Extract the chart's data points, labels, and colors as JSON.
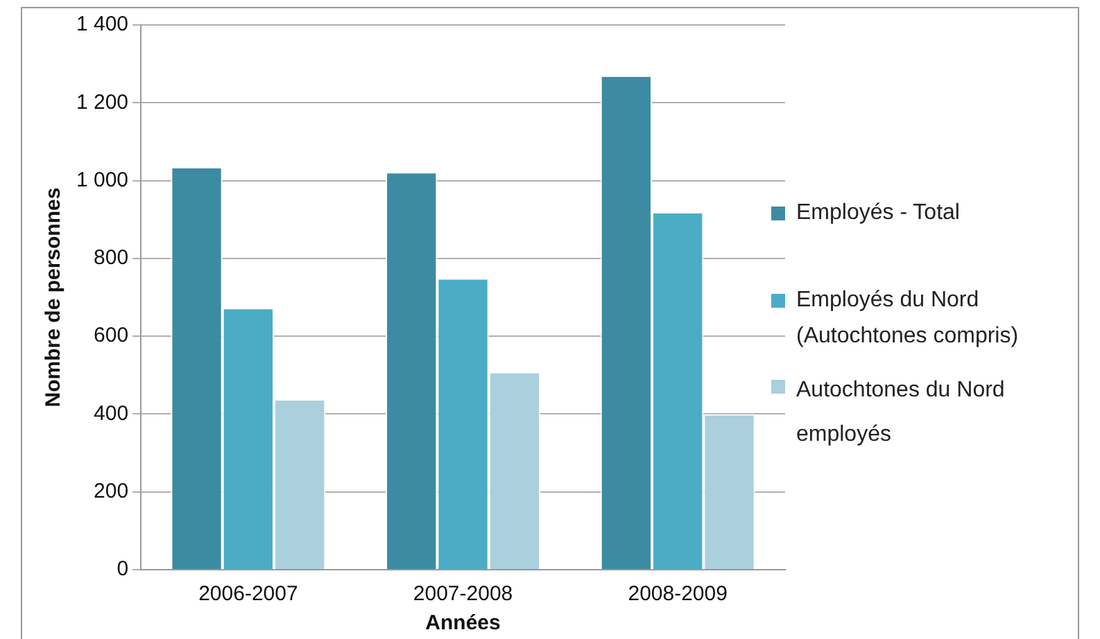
{
  "chart_data": {
    "type": "bar",
    "xlabel": "Années",
    "ylabel": "Nombre de personnes",
    "categories": [
      "2006-2007",
      "2007-2008",
      "2008-2009"
    ],
    "series": [
      {
        "name": "Employés - Total",
        "color": "#3d8ba3",
        "values": [
          1035,
          1022,
          1270
        ]
      },
      {
        "name": "Employés du Nord (Autochtones compris)",
        "color": "#4bacc6",
        "values": [
          673,
          749,
          919
        ]
      },
      {
        "name": "Autochtones du Nord employés",
        "color": "#aacfdd",
        "values": [
          438,
          508,
          400
        ]
      }
    ],
    "ylim": [
      0,
      1400
    ],
    "yticks": [
      {
        "value": 0,
        "label": "0"
      },
      {
        "value": 200,
        "label": "200"
      },
      {
        "value": 400,
        "label": "400"
      },
      {
        "value": 600,
        "label": "600"
      },
      {
        "value": 800,
        "label": "800"
      },
      {
        "value": 1000,
        "label": "1 000"
      },
      {
        "value": 1200,
        "label": "1 200"
      },
      {
        "value": 1400,
        "label": "1 400"
      }
    ],
    "grid": "y",
    "legend": "right"
  }
}
